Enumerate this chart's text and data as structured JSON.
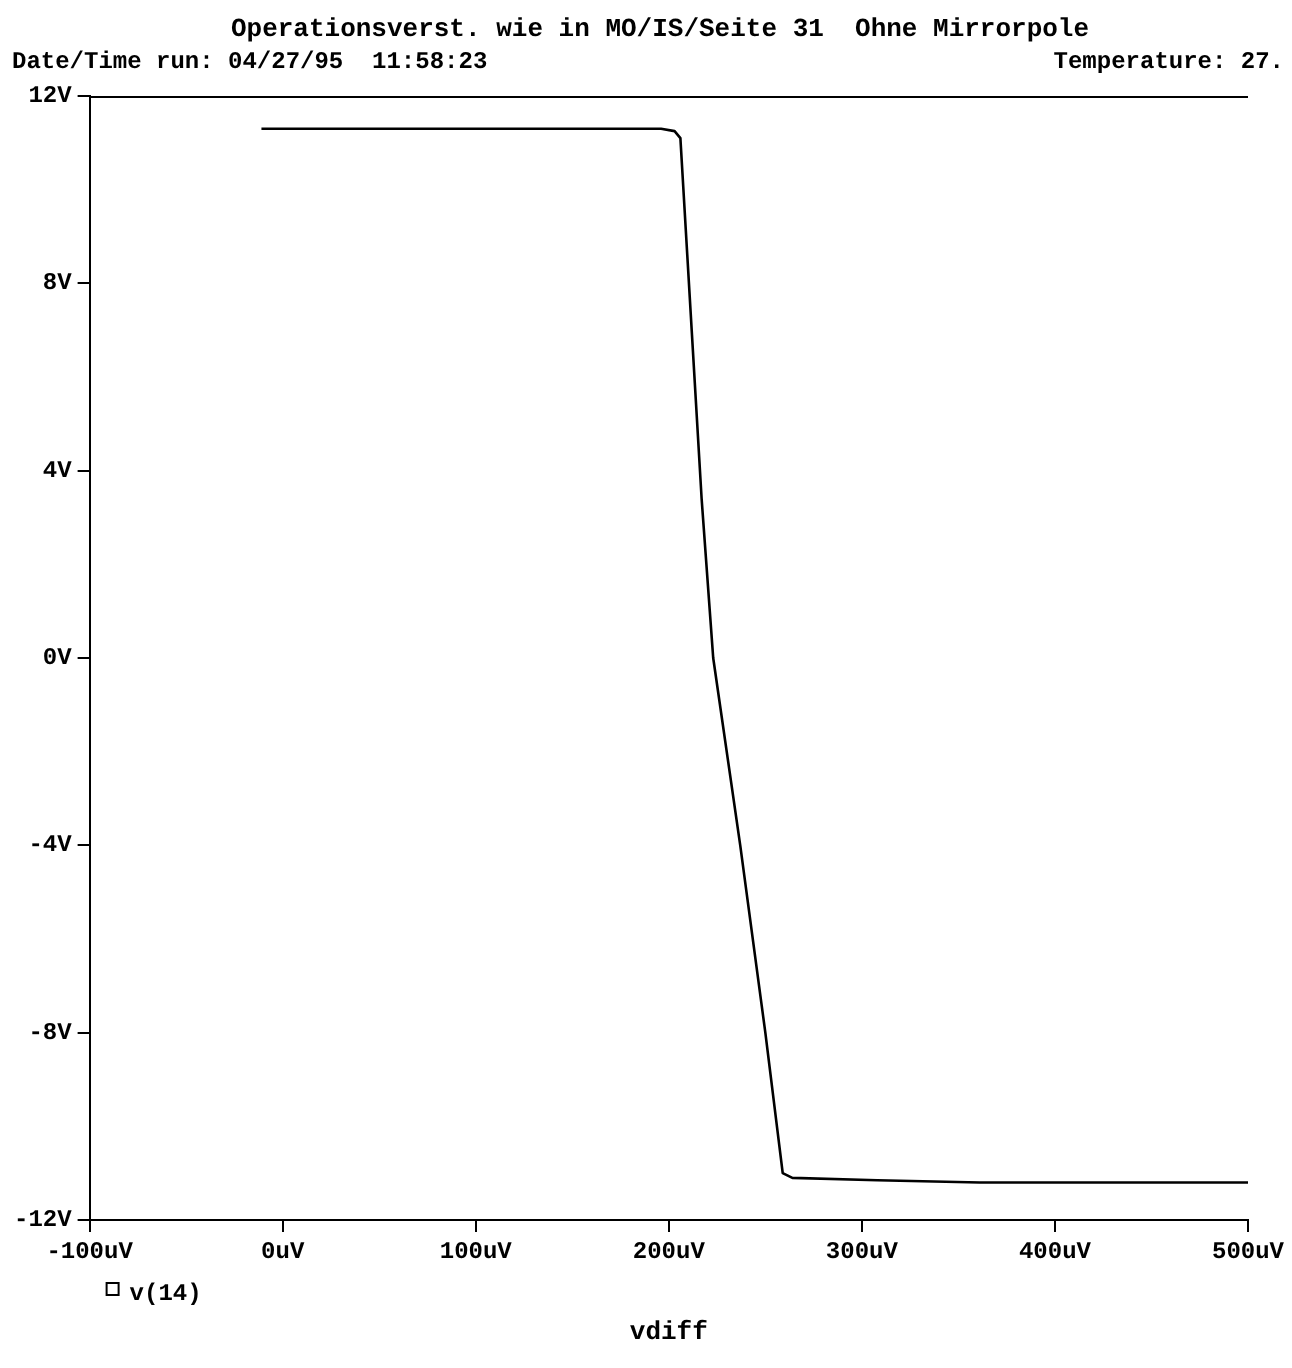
{
  "chart_data": {
    "type": "line",
    "title": "Operationsverst. wie in MO/IS/Seite 31  Ohne Mirrorpole",
    "subtitle": "Date/Time run: 04/27/95  11:58:23",
    "annotations": [
      "Temperature: 27."
    ],
    "xlabel": "vdiff",
    "xlim": [
      -100,
      500
    ],
    "xticks": [
      {
        "value": -100,
        "label": "-100uV"
      },
      {
        "value": 0,
        "label": "0uV"
      },
      {
        "value": 100,
        "label": "100uV"
      },
      {
        "value": 200,
        "label": "200uV"
      },
      {
        "value": 300,
        "label": "300uV"
      },
      {
        "value": 400,
        "label": "400uV"
      },
      {
        "value": 500,
        "label": "500uV"
      }
    ],
    "ylim": [
      -12,
      12
    ],
    "yticks": [
      {
        "value": -12,
        "label": "-12V"
      },
      {
        "value": -8,
        "label": "-8V"
      },
      {
        "value": -4,
        "label": "-4V"
      },
      {
        "value": 0,
        "label": "0V"
      },
      {
        "value": 4,
        "label": "4V"
      },
      {
        "value": 8,
        "label": "8V"
      },
      {
        "value": 12,
        "label": "12V"
      }
    ],
    "grid": false,
    "legend": "bottom left",
    "line_style": "solid",
    "series": [
      {
        "name": "v(14)",
        "color": "#000000",
        "x": [
          -11,
          100,
          196,
          203,
          206,
          212,
          217,
          223,
          237,
          250,
          259,
          264,
          308,
          361,
          400,
          500
        ],
        "values": [
          11.3,
          11.3,
          11.3,
          11.25,
          11.1,
          6.9,
          3.4,
          0,
          -4,
          -8,
          -11.0,
          -11.1,
          -11.15,
          -11.2,
          -11.2,
          -11.2
        ]
      }
    ]
  }
}
